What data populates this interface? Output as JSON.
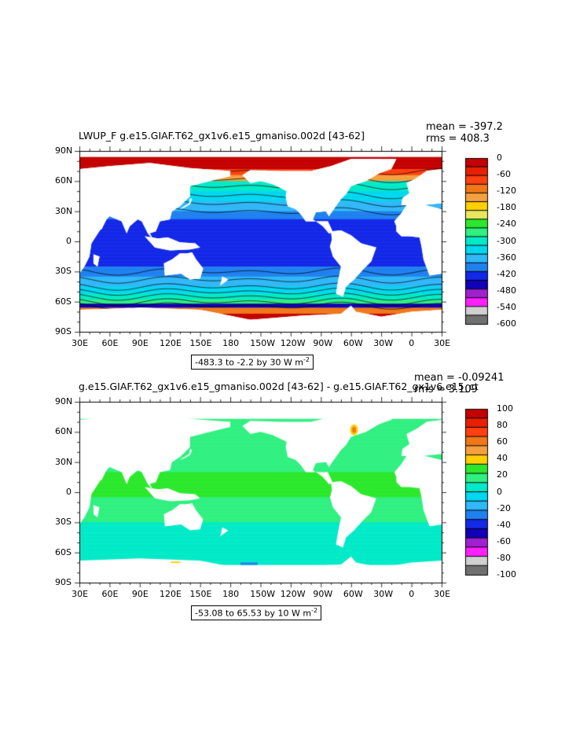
{
  "panels": [
    {
      "id": "top",
      "title": "LWUP_F  g.e15.GIAF.T62_gx1v6.e15_gmaniso.002d  [43-62]",
      "mean_text": "mean = -397.2",
      "rms_text": "rms = 408.3",
      "range_text": "-483.3 to -2.2 by 30  W m",
      "range_exp": "-2",
      "colorbar": {
        "labels": [
          "0",
          "-60",
          "-120",
          "-180",
          "-240",
          "-300",
          "-360",
          "-420",
          "-480",
          "-540",
          "-600"
        ],
        "colors": [
          "#c40000",
          "#e82000",
          "#ff4010",
          "#f07818",
          "#f5a040",
          "#ffd000",
          "#e8e860",
          "#2ce82c",
          "#30f080",
          "#00eac8",
          "#00d8f0",
          "#30b8f8",
          "#2080f0",
          "#1428e8",
          "#1000b8",
          "#a020d0",
          "#ff20ff",
          "#d0d0d0",
          "#707070"
        ]
      },
      "field": "lwup"
    },
    {
      "id": "bottom",
      "title": "g.e15.GIAF.T62_gx1v6.e15_gmaniso.002d  [43-62]  -  g.e15.GIAF.T62_gx1v6.e15_ct",
      "mean_text": "mean = -0.09241",
      "rms_text": "rms = 3.109",
      "range_text": "-53.08 to 65.53 by 10  W m",
      "range_exp": "-2",
      "colorbar": {
        "labels": [
          "100",
          "80",
          "60",
          "40",
          "20",
          "0",
          "-20",
          "-40",
          "-60",
          "-80",
          "-100"
        ],
        "colors": [
          "#c40000",
          "#e82000",
          "#ff4010",
          "#f07818",
          "#f5a040",
          "#ffd000",
          "#2ce82c",
          "#30f080",
          "#00eac8",
          "#00d8f0",
          "#30b8f8",
          "#2080f0",
          "#1428e8",
          "#1000b8",
          "#a020d0",
          "#ff20ff",
          "#d0d0d0",
          "#707070"
        ]
      },
      "field": "diff"
    }
  ],
  "lat_labels": [
    "90N",
    "60N",
    "30N",
    "0",
    "30S",
    "60S",
    "90S"
  ],
  "lon_labels": [
    "30E",
    "60E",
    "90E",
    "120E",
    "150E",
    "180",
    "150W",
    "120W",
    "90W",
    "60W",
    "30W",
    "0",
    "30E"
  ]
}
